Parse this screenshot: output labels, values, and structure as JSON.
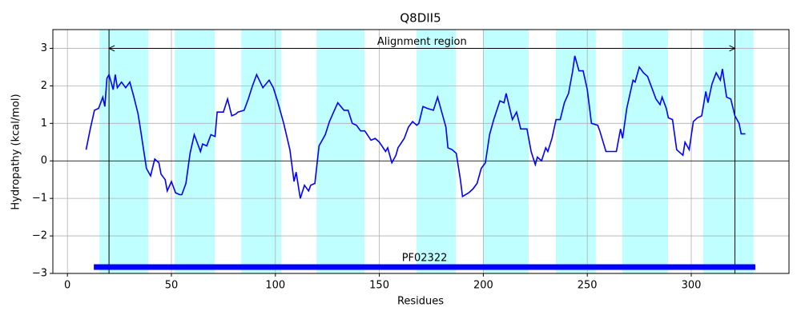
{
  "chart_data": {
    "type": "line",
    "title": "Q8DII5",
    "x_label": "Residues",
    "y_label": "Hydropathy (kcal/mol)",
    "color": "#0000ff",
    "x": [
      9,
      11,
      13,
      15,
      17,
      18,
      19,
      20,
      22,
      23,
      24,
      26,
      28,
      30,
      32,
      34,
      35,
      38,
      40,
      42,
      44,
      45,
      47,
      48,
      50,
      52,
      54,
      55,
      57,
      59,
      61,
      62,
      64,
      65,
      67,
      69,
      71,
      72,
      75,
      77,
      79,
      81,
      82,
      85,
      87,
      89,
      91,
      94,
      97,
      99,
      101,
      104,
      107,
      109,
      110,
      112,
      114,
      116,
      117,
      119,
      121,
      124,
      126,
      128,
      130,
      133,
      135,
      137,
      139,
      141,
      143,
      146,
      148,
      150,
      153,
      154,
      156,
      158,
      159,
      162,
      164,
      166,
      168,
      169,
      171,
      173,
      176,
      178,
      179,
      182,
      183,
      185,
      187,
      189,
      190,
      193,
      195,
      197,
      199,
      201,
      203,
      205,
      208,
      210,
      211,
      214,
      216,
      218,
      221,
      223,
      225,
      226,
      228,
      230,
      231,
      233,
      235,
      237,
      239,
      241,
      243,
      244,
      246,
      248,
      250,
      252,
      255,
      256,
      259,
      262,
      264,
      266,
      267,
      269,
      272,
      273,
      275,
      277,
      279,
      281,
      283,
      285,
      286,
      288,
      289,
      291,
      293,
      296,
      297,
      299,
      301,
      303,
      305,
      307,
      308,
      310,
      312,
      314,
      315,
      317,
      319,
      321,
      323,
      324,
      326
    ],
    "values": [
      0.3,
      0.85,
      1.35,
      1.4,
      1.7,
      1.45,
      2.2,
      2.3,
      1.9,
      2.3,
      1.95,
      2.1,
      1.95,
      2.1,
      1.7,
      1.25,
      0.9,
      -0.2,
      -0.4,
      0.05,
      -0.05,
      -0.35,
      -0.5,
      -0.8,
      -0.55,
      -0.85,
      -0.9,
      -0.9,
      -0.6,
      0.2,
      0.7,
      0.55,
      0.25,
      0.45,
      0.4,
      0.7,
      0.65,
      1.3,
      1.3,
      1.65,
      1.2,
      1.25,
      1.3,
      1.35,
      1.65,
      2.0,
      2.3,
      1.95,
      2.15,
      1.95,
      1.6,
      1.0,
      0.3,
      -0.55,
      -0.3,
      -1.0,
      -0.65,
      -0.8,
      -0.65,
      -0.6,
      0.4,
      0.7,
      1.05,
      1.3,
      1.55,
      1.35,
      1.35,
      1.0,
      0.95,
      0.8,
      0.8,
      0.55,
      0.6,
      0.5,
      0.25,
      0.35,
      -0.05,
      0.15,
      0.35,
      0.6,
      0.9,
      1.05,
      0.95,
      1.0,
      1.45,
      1.4,
      1.35,
      1.7,
      1.5,
      0.9,
      0.35,
      0.3,
      0.2,
      -0.5,
      -0.95,
      -0.85,
      -0.75,
      -0.6,
      -0.2,
      -0.05,
      0.7,
      1.1,
      1.6,
      1.55,
      1.8,
      1.1,
      1.3,
      0.85,
      0.85,
      0.25,
      -0.1,
      0.1,
      0.0,
      0.35,
      0.25,
      0.6,
      1.1,
      1.1,
      1.55,
      1.8,
      2.4,
      2.8,
      2.4,
      2.4,
      1.9,
      1.0,
      0.95,
      0.8,
      0.25,
      0.25,
      0.25,
      0.85,
      0.6,
      1.4,
      2.15,
      2.1,
      2.5,
      2.35,
      2.25,
      1.95,
      1.65,
      1.5,
      1.7,
      1.4,
      1.15,
      1.1,
      0.3,
      0.15,
      0.5,
      0.3,
      1.05,
      1.15,
      1.2,
      1.85,
      1.55,
      2.05,
      2.35,
      2.15,
      2.45,
      1.7,
      1.65,
      1.2,
      1.0,
      0.72,
      0.72
    ],
    "xlim": [
      -7,
      347
    ],
    "ylim": [
      -3,
      3.5
    ],
    "xticks": [
      0,
      50,
      100,
      150,
      200,
      250,
      300
    ],
    "yticks": [
      {
        "value": -3,
        "label": "−3"
      },
      {
        "value": -2,
        "label": "−2"
      },
      {
        "value": -1,
        "label": "−1"
      },
      0,
      1,
      2,
      3
    ],
    "grid": true,
    "regions": [
      [
        15.4,
        38.9
      ],
      [
        51.6,
        70.9
      ],
      [
        83.6,
        102.8
      ],
      [
        119.8,
        142.9
      ],
      [
        167.9,
        186.8
      ],
      [
        199.8,
        221.8
      ],
      [
        234.9,
        254.1
      ],
      [
        266.8,
        288.8
      ],
      [
        305.7,
        330
      ]
    ],
    "region_color": "#c0ffff",
    "hline": 0,
    "vlines": [
      20,
      321
    ],
    "annotation": {
      "text": "Alignment region",
      "x": [
        20,
        321
      ],
      "y": 3
    },
    "domain": {
      "label": "PF02322",
      "start": 12.7,
      "end": 330.8,
      "y": -2.83,
      "color": "#0000ff"
    }
  }
}
